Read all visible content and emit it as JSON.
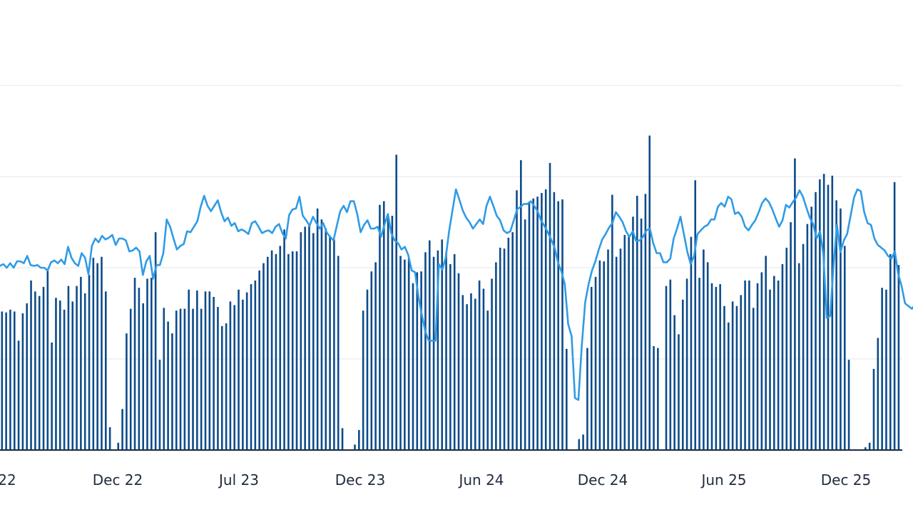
{
  "chart_data": {
    "type": "bar+line",
    "title": "",
    "xlabel": "",
    "ylabel": "",
    "grid": true,
    "ylim": [
      0,
      4
    ],
    "yticks": [
      0,
      1,
      2,
      3,
      4
    ],
    "x_tick_labels": [
      "22",
      "Dec 22",
      "Jul 23",
      "Dec 23",
      "Jun 24",
      "Dec 24",
      "Jun 25",
      "Dec 25"
    ],
    "colors": {
      "bars": "#0d4b8a",
      "line": "#2f9be6",
      "grid": "#e3e6ea",
      "axis": "#1f2b3d"
    },
    "series": [
      {
        "kind": "bar",
        "values": [
          1.52,
          1.51,
          1.54,
          1.52,
          1.2,
          1.5,
          1.61,
          1.86,
          1.74,
          1.69,
          1.79,
          1.98,
          1.18,
          1.67,
          1.64,
          1.54,
          1.8,
          1.63,
          1.8,
          1.9,
          1.72,
          1.92,
          2.11,
          2.05,
          2.12,
          1.74,
          0.25,
          0,
          0.08,
          0.45,
          1.28,
          1.55,
          1.89,
          1.78,
          1.61,
          1.88,
          1.89,
          2.39,
          0.99,
          1.56,
          1.41,
          1.28,
          1.53,
          1.55,
          1.55,
          1.76,
          1.55,
          1.75,
          1.55,
          1.74,
          1.74,
          1.68,
          1.57,
          1.36,
          1.39,
          1.63,
          1.59,
          1.76,
          1.65,
          1.73,
          1.82,
          1.86,
          1.97,
          2.05,
          2.12,
          2.19,
          2.15,
          2.24,
          2.42,
          2.15,
          2.18,
          2.18,
          2.39,
          2.45,
          2.46,
          2.38,
          2.65,
          2.53,
          2.43,
          2.35,
          2.31,
          2.13,
          0.24,
          0,
          0,
          0.06,
          0.22,
          1.53,
          1.76,
          1.96,
          2.06,
          2.69,
          2.73,
          2.54,
          2.57,
          3.24,
          2.13,
          2.09,
          2.11,
          1.83,
          1.95,
          1.96,
          2.17,
          2.3,
          2.12,
          2.19,
          2.31,
          2.17,
          2.04,
          2.15,
          1.94,
          1.7,
          1.6,
          1.72,
          1.66,
          1.86,
          1.77,
          1.53,
          1.88,
          2.06,
          2.22,
          2.21,
          2.33,
          2.39,
          2.85,
          3.18,
          2.53,
          2.72,
          2.76,
          2.78,
          2.82,
          2.86,
          3.15,
          2.83,
          2.73,
          2.75,
          1.11,
          0,
          0,
          0.12,
          0.17,
          1.12,
          1.79,
          1.9,
          2.08,
          2.07,
          2.2,
          2.8,
          2.12,
          2.21,
          2.36,
          2.35,
          2.56,
          2.79,
          2.54,
          2.81,
          3.45,
          1.14,
          1.12,
          0,
          1.8,
          1.87,
          1.48,
          1.27,
          1.65,
          1.88,
          2.34,
          2.96,
          1.89,
          2.2,
          2.06,
          1.83,
          1.79,
          1.82,
          1.58,
          1.4,
          1.63,
          1.58,
          1.7,
          1.86,
          1.86,
          1.56,
          1.83,
          1.95,
          2.13,
          1.76,
          1.91,
          1.86,
          2.04,
          2.22,
          2.5,
          3.2,
          2.05,
          2.26,
          2.48,
          2.67,
          2.83,
          2.97,
          3.03,
          2.91,
          3.01,
          2.74,
          2.65,
          2.24,
          0.99,
          0,
          0,
          0,
          0.03,
          0.08,
          0.89,
          1.23,
          1.78,
          1.76,
          2.15,
          2.94,
          2.03
        ],
        "name": ""
      },
      {
        "kind": "line",
        "values": [
          2.02,
          2.04,
          2.0,
          2.05,
          2.0,
          2.07,
          2.07,
          2.05,
          2.13,
          2.03,
          2.02,
          2.03,
          2.0,
          2.0,
          1.97,
          2.06,
          2.08,
          2.05,
          2.09,
          2.04,
          2.23,
          2.11,
          2.05,
          2.02,
          2.16,
          2.11,
          1.93,
          2.24,
          2.32,
          2.28,
          2.35,
          2.31,
          2.33,
          2.36,
          2.25,
          2.32,
          2.32,
          2.3,
          2.18,
          2.19,
          2.22,
          2.18,
          1.92,
          2.07,
          2.13,
          1.88,
          2.03,
          2.03,
          2.16,
          2.53,
          2.45,
          2.32,
          2.2,
          2.24,
          2.26,
          2.4,
          2.39,
          2.45,
          2.51,
          2.67,
          2.79,
          2.68,
          2.62,
          2.68,
          2.74,
          2.61,
          2.51,
          2.55,
          2.46,
          2.49,
          2.4,
          2.42,
          2.4,
          2.37,
          2.49,
          2.51,
          2.45,
          2.38,
          2.4,
          2.41,
          2.38,
          2.45,
          2.48,
          2.38,
          2.32,
          2.58,
          2.64,
          2.65,
          2.78,
          2.57,
          2.52,
          2.46,
          2.56,
          2.49,
          2.43,
          2.49,
          2.39,
          2.34,
          2.3,
          2.46,
          2.62,
          2.68,
          2.61,
          2.73,
          2.73,
          2.59,
          2.39,
          2.47,
          2.52,
          2.43,
          2.43,
          2.45,
          2.34,
          2.47,
          2.59,
          2.38,
          2.3,
          2.27,
          2.2,
          2.23,
          2.14,
          1.97,
          1.95,
          1.68,
          1.48,
          1.3,
          1.2,
          1.2,
          1.2,
          2.04,
          1.98,
          2.11,
          2.4,
          2.63,
          2.86,
          2.75,
          2.63,
          2.55,
          2.5,
          2.43,
          2.48,
          2.53,
          2.48,
          2.68,
          2.78,
          2.68,
          2.57,
          2.52,
          2.41,
          2.38,
          2.4,
          2.52,
          2.64,
          2.67,
          2.7,
          2.7,
          2.73,
          2.68,
          2.62,
          2.52,
          2.46,
          2.39,
          2.31,
          2.22,
          2.06,
          1.96,
          1.82,
          1.38,
          1.25,
          0.57,
          0.55,
          1.15,
          1.62,
          1.82,
          1.97,
          2.07,
          2.2,
          2.31,
          2.37,
          2.44,
          2.49,
          2.61,
          2.56,
          2.5,
          2.4,
          2.34,
          2.4,
          2.29,
          2.3,
          2.34,
          2.41,
          2.43,
          2.27,
          2.16,
          2.16,
          2.06,
          2.06,
          2.1,
          2.32,
          2.43,
          2.56,
          2.37,
          2.18,
          2.04,
          2.13,
          2.37,
          2.41,
          2.45,
          2.47,
          2.53,
          2.53,
          2.67,
          2.71,
          2.67,
          2.78,
          2.75,
          2.59,
          2.61,
          2.56,
          2.45,
          2.41,
          2.47,
          2.52,
          2.61,
          2.71,
          2.76,
          2.72,
          2.64,
          2.54,
          2.45,
          2.52,
          2.69,
          2.66,
          2.72,
          2.77,
          2.85,
          2.78,
          2.66,
          2.55,
          2.48,
          2.32,
          2.4,
          2.15,
          1.45,
          1.47,
          2.03,
          2.47,
          2.17,
          2.3,
          2.37,
          2.57,
          2.77,
          2.86,
          2.84,
          2.61,
          2.49,
          2.47,
          2.32,
          2.25,
          2.22,
          2.19,
          2.13,
          2.1,
          2.18,
          1.93,
          1.8,
          1.61,
          1.58,
          1.55,
          1.6,
          1.93,
          2.42,
          2.5,
          2.11,
          2.0,
          1.82
        ],
        "name": ""
      }
    ]
  }
}
